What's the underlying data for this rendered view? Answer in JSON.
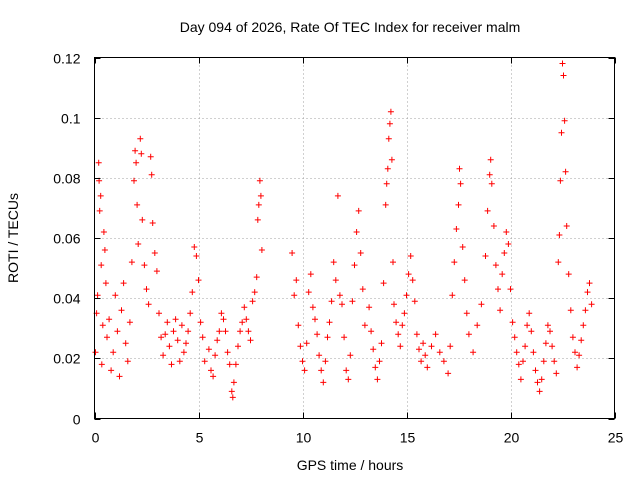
{
  "chart_data": {
    "type": "scatter",
    "title": "Day 094 of 2026, Rate Of TEC Index for receiver malm",
    "xlabel": "GPS time / hours",
    "ylabel": "ROTI / TECUs",
    "xlim": [
      0,
      25
    ],
    "ylim": [
      0,
      0.12
    ],
    "xticks": [
      0,
      5,
      10,
      15,
      20,
      25
    ],
    "xtick_labels": [
      "0",
      "5",
      "10",
      "15",
      "20",
      "25"
    ],
    "yticks": [
      0,
      0.02,
      0.04,
      0.06,
      0.08,
      0.1,
      0.12
    ],
    "ytick_labels": [
      "0",
      "0.02",
      "0.04",
      "0.06",
      "0.08",
      "0.1",
      "0.12"
    ],
    "grid": true,
    "marker": "+",
    "series": [
      {
        "name": "ROTI",
        "color": "#ff0000",
        "points": [
          [
            0.05,
            0.022
          ],
          [
            0.1,
            0.035
          ],
          [
            0.15,
            0.041
          ],
          [
            0.2,
            0.085
          ],
          [
            0.22,
            0.079
          ],
          [
            0.25,
            0.069
          ],
          [
            0.3,
            0.074
          ],
          [
            0.32,
            0.051
          ],
          [
            0.35,
            0.018
          ],
          [
            0.4,
            0.031
          ],
          [
            0.45,
            0.062
          ],
          [
            0.5,
            0.056
          ],
          [
            0.55,
            0.045
          ],
          [
            0.6,
            0.027
          ],
          [
            0.7,
            0.033
          ],
          [
            0.8,
            0.016
          ],
          [
            0.9,
            0.022
          ],
          [
            1.0,
            0.041
          ],
          [
            1.1,
            0.029
          ],
          [
            1.2,
            0.014
          ],
          [
            1.3,
            0.036
          ],
          [
            1.4,
            0.045
          ],
          [
            1.5,
            0.025
          ],
          [
            1.6,
            0.019
          ],
          [
            1.7,
            0.032
          ],
          [
            1.8,
            0.052
          ],
          [
            1.9,
            0.079
          ],
          [
            1.95,
            0.089
          ],
          [
            2.0,
            0.085
          ],
          [
            2.05,
            0.071
          ],
          [
            2.1,
            0.058
          ],
          [
            2.2,
            0.093
          ],
          [
            2.25,
            0.088
          ],
          [
            2.3,
            0.066
          ],
          [
            2.4,
            0.051
          ],
          [
            2.5,
            0.043
          ],
          [
            2.6,
            0.038
          ],
          [
            2.7,
            0.087
          ],
          [
            2.75,
            0.081
          ],
          [
            2.8,
            0.065
          ],
          [
            2.9,
            0.055
          ],
          [
            3.0,
            0.049
          ],
          [
            3.1,
            0.035
          ],
          [
            3.2,
            0.027
          ],
          [
            3.3,
            0.021
          ],
          [
            3.4,
            0.028
          ],
          [
            3.5,
            0.032
          ],
          [
            3.6,
            0.024
          ],
          [
            3.7,
            0.018
          ],
          [
            3.8,
            0.029
          ],
          [
            3.9,
            0.033
          ],
          [
            4.0,
            0.026
          ],
          [
            4.1,
            0.019
          ],
          [
            4.2,
            0.031
          ],
          [
            4.3,
            0.022
          ],
          [
            4.4,
            0.025
          ],
          [
            4.5,
            0.029
          ],
          [
            4.6,
            0.035
          ],
          [
            4.7,
            0.042
          ],
          [
            4.8,
            0.057
          ],
          [
            4.9,
            0.054
          ],
          [
            5.0,
            0.046
          ],
          [
            5.1,
            0.032
          ],
          [
            5.2,
            0.027
          ],
          [
            5.3,
            0.019
          ],
          [
            5.5,
            0.023
          ],
          [
            5.6,
            0.016
          ],
          [
            5.7,
            0.014
          ],
          [
            5.8,
            0.021
          ],
          [
            5.9,
            0.026
          ],
          [
            6.0,
            0.029
          ],
          [
            6.1,
            0.035
          ],
          [
            6.2,
            0.033
          ],
          [
            6.3,
            0.029
          ],
          [
            6.4,
            0.022
          ],
          [
            6.5,
            0.018
          ],
          [
            6.6,
            0.009
          ],
          [
            6.65,
            0.007
          ],
          [
            6.7,
            0.012
          ],
          [
            6.8,
            0.018
          ],
          [
            6.9,
            0.024
          ],
          [
            7.0,
            0.029
          ],
          [
            7.1,
            0.032
          ],
          [
            7.2,
            0.037
          ],
          [
            7.3,
            0.033
          ],
          [
            7.4,
            0.029
          ],
          [
            7.5,
            0.026
          ],
          [
            7.6,
            0.039
          ],
          [
            7.7,
            0.042
          ],
          [
            7.8,
            0.047
          ],
          [
            7.85,
            0.066
          ],
          [
            7.9,
            0.071
          ],
          [
            7.95,
            0.079
          ],
          [
            8.0,
            0.074
          ],
          [
            8.05,
            0.056
          ],
          [
            9.5,
            0.055
          ],
          [
            9.6,
            0.041
          ],
          [
            9.7,
            0.046
          ],
          [
            9.8,
            0.031
          ],
          [
            9.9,
            0.024
          ],
          [
            10.0,
            0.019
          ],
          [
            10.1,
            0.016
          ],
          [
            10.2,
            0.025
          ],
          [
            10.3,
            0.042
          ],
          [
            10.4,
            0.048
          ],
          [
            10.5,
            0.037
          ],
          [
            10.6,
            0.033
          ],
          [
            10.7,
            0.028
          ],
          [
            10.8,
            0.021
          ],
          [
            10.9,
            0.016
          ],
          [
            11.0,
            0.012
          ],
          [
            11.1,
            0.019
          ],
          [
            11.2,
            0.027
          ],
          [
            11.3,
            0.032
          ],
          [
            11.4,
            0.039
          ],
          [
            11.5,
            0.052
          ],
          [
            11.6,
            0.046
          ],
          [
            11.7,
            0.074
          ],
          [
            11.8,
            0.041
          ],
          [
            11.9,
            0.038
          ],
          [
            12.0,
            0.027
          ],
          [
            12.1,
            0.016
          ],
          [
            12.2,
            0.013
          ],
          [
            12.3,
            0.021
          ],
          [
            12.4,
            0.039
          ],
          [
            12.5,
            0.051
          ],
          [
            12.6,
            0.062
          ],
          [
            12.7,
            0.069
          ],
          [
            12.8,
            0.055
          ],
          [
            12.9,
            0.043
          ],
          [
            13.0,
            0.031
          ],
          [
            13.2,
            0.037
          ],
          [
            13.3,
            0.029
          ],
          [
            13.4,
            0.023
          ],
          [
            13.5,
            0.017
          ],
          [
            13.6,
            0.013
          ],
          [
            13.7,
            0.019
          ],
          [
            13.8,
            0.025
          ],
          [
            13.9,
            0.045
          ],
          [
            14.0,
            0.071
          ],
          [
            14.05,
            0.078
          ],
          [
            14.1,
            0.083
          ],
          [
            14.15,
            0.093
          ],
          [
            14.2,
            0.098
          ],
          [
            14.25,
            0.102
          ],
          [
            14.3,
            0.086
          ],
          [
            14.35,
            0.052
          ],
          [
            14.4,
            0.038
          ],
          [
            14.5,
            0.032
          ],
          [
            14.6,
            0.028
          ],
          [
            14.7,
            0.024
          ],
          [
            14.8,
            0.031
          ],
          [
            14.9,
            0.035
          ],
          [
            15.0,
            0.041
          ],
          [
            15.1,
            0.048
          ],
          [
            15.2,
            0.054
          ],
          [
            15.3,
            0.046
          ],
          [
            15.4,
            0.039
          ],
          [
            15.5,
            0.028
          ],
          [
            15.6,
            0.023
          ],
          [
            15.7,
            0.019
          ],
          [
            15.8,
            0.025
          ],
          [
            15.9,
            0.021
          ],
          [
            16.0,
            0.017
          ],
          [
            16.2,
            0.024
          ],
          [
            16.4,
            0.028
          ],
          [
            16.6,
            0.022
          ],
          [
            16.8,
            0.019
          ],
          [
            17.0,
            0.015
          ],
          [
            17.1,
            0.024
          ],
          [
            17.2,
            0.041
          ],
          [
            17.3,
            0.052
          ],
          [
            17.4,
            0.063
          ],
          [
            17.5,
            0.071
          ],
          [
            17.55,
            0.083
          ],
          [
            17.6,
            0.078
          ],
          [
            17.7,
            0.057
          ],
          [
            17.8,
            0.046
          ],
          [
            17.9,
            0.035
          ],
          [
            18.0,
            0.028
          ],
          [
            18.2,
            0.022
          ],
          [
            18.4,
            0.031
          ],
          [
            18.6,
            0.038
          ],
          [
            18.8,
            0.054
          ],
          [
            18.9,
            0.069
          ],
          [
            19.0,
            0.081
          ],
          [
            19.05,
            0.086
          ],
          [
            19.1,
            0.078
          ],
          [
            19.2,
            0.064
          ],
          [
            19.3,
            0.051
          ],
          [
            19.4,
            0.043
          ],
          [
            19.5,
            0.036
          ],
          [
            19.6,
            0.048
          ],
          [
            19.7,
            0.055
          ],
          [
            19.8,
            0.062
          ],
          [
            19.9,
            0.058
          ],
          [
            20.0,
            0.043
          ],
          [
            20.1,
            0.032
          ],
          [
            20.2,
            0.027
          ],
          [
            20.3,
            0.022
          ],
          [
            20.4,
            0.018
          ],
          [
            20.5,
            0.013
          ],
          [
            20.6,
            0.019
          ],
          [
            20.7,
            0.024
          ],
          [
            20.8,
            0.031
          ],
          [
            20.9,
            0.035
          ],
          [
            21.0,
            0.029
          ],
          [
            21.1,
            0.022
          ],
          [
            21.2,
            0.016
          ],
          [
            21.3,
            0.012
          ],
          [
            21.4,
            0.009
          ],
          [
            21.5,
            0.013
          ],
          [
            21.6,
            0.019
          ],
          [
            21.7,
            0.025
          ],
          [
            21.8,
            0.031
          ],
          [
            21.9,
            0.029
          ],
          [
            22.0,
            0.024
          ],
          [
            22.1,
            0.019
          ],
          [
            22.2,
            0.015
          ],
          [
            22.3,
            0.052
          ],
          [
            22.35,
            0.061
          ],
          [
            22.4,
            0.079
          ],
          [
            22.45,
            0.095
          ],
          [
            22.5,
            0.118
          ],
          [
            22.55,
            0.114
          ],
          [
            22.6,
            0.099
          ],
          [
            22.65,
            0.082
          ],
          [
            22.7,
            0.064
          ],
          [
            22.8,
            0.048
          ],
          [
            22.9,
            0.036
          ],
          [
            23.0,
            0.027
          ],
          [
            23.1,
            0.022
          ],
          [
            23.2,
            0.017
          ],
          [
            23.3,
            0.021
          ],
          [
            23.4,
            0.026
          ],
          [
            23.5,
            0.031
          ],
          [
            23.6,
            0.036
          ],
          [
            23.7,
            0.042
          ],
          [
            23.8,
            0.045
          ],
          [
            23.9,
            0.038
          ]
        ]
      }
    ]
  }
}
